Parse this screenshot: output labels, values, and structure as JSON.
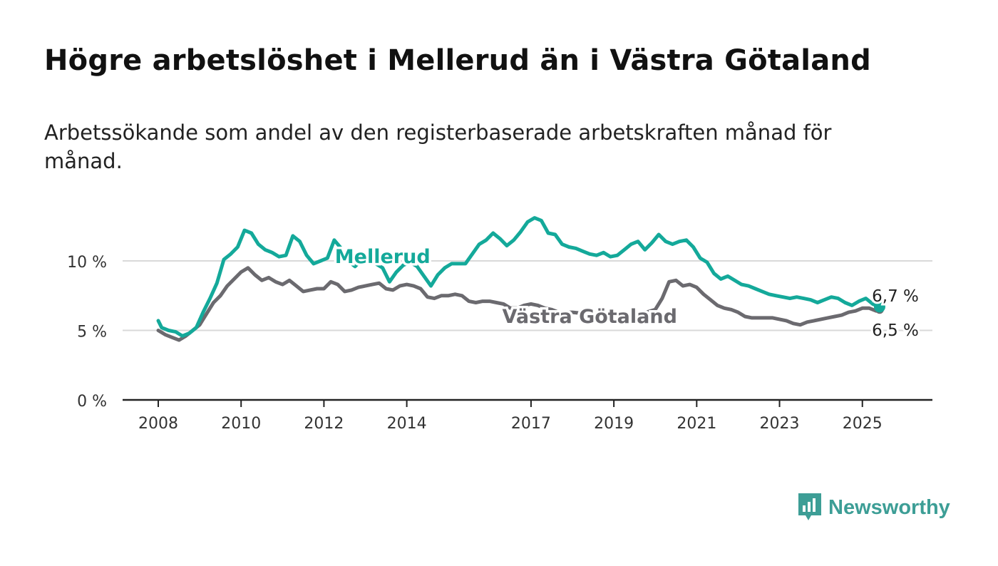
{
  "title": "Högre arbetslöshet i Mellerud än i Västra Götaland",
  "subtitle": "Arbetssökande som andel av den registerbaserade arbetskraften månad för månad.",
  "brand": {
    "name": "Newsworthy",
    "color": "#3d9e96",
    "icon": "bar-chart-speech-icon"
  },
  "chart_data": {
    "type": "line",
    "xlabel": "",
    "ylabel": "",
    "ylim": [
      0,
      14
    ],
    "xlim": [
      "2008-01",
      "2025-12"
    ],
    "yticks": [
      {
        "value": 0,
        "label": "0 %"
      },
      {
        "value": 5,
        "label": "5 %"
      },
      {
        "value": 10,
        "label": "10 %"
      }
    ],
    "xticks": [
      "2008",
      "2010",
      "2012",
      "2014",
      "2017",
      "2019",
      "2021",
      "2023",
      "2025"
    ],
    "grid": "horizontal",
    "series": [
      {
        "name": "Mellerud",
        "color": "#14a99a",
        "end_label": "6,7 %",
        "points": [
          [
            "2008-01",
            5.7
          ],
          [
            "2008-02",
            5.2
          ],
          [
            "2008-04",
            5.0
          ],
          [
            "2008-06",
            4.9
          ],
          [
            "2008-08",
            4.6
          ],
          [
            "2008-10",
            4.8
          ],
          [
            "2008-12",
            5.2
          ],
          [
            "2009-02",
            6.3
          ],
          [
            "2009-04",
            7.3
          ],
          [
            "2009-06",
            8.4
          ],
          [
            "2009-08",
            10.1
          ],
          [
            "2009-10",
            10.5
          ],
          [
            "2009-12",
            11.0
          ],
          [
            "2010-02",
            12.2
          ],
          [
            "2010-04",
            12.0
          ],
          [
            "2010-06",
            11.2
          ],
          [
            "2010-08",
            10.8
          ],
          [
            "2010-10",
            10.6
          ],
          [
            "2010-12",
            10.3
          ],
          [
            "2011-02",
            10.4
          ],
          [
            "2011-04",
            11.8
          ],
          [
            "2011-06",
            11.4
          ],
          [
            "2011-08",
            10.4
          ],
          [
            "2011-10",
            9.8
          ],
          [
            "2011-12",
            10.0
          ],
          [
            "2012-02",
            10.2
          ],
          [
            "2012-04",
            11.5
          ],
          [
            "2012-06",
            10.9
          ],
          [
            "2012-08",
            10.0
          ],
          [
            "2012-10",
            9.6
          ],
          [
            "2012-12",
            10.1
          ],
          [
            "2013-02",
            9.9
          ],
          [
            "2013-04",
            9.8
          ],
          [
            "2013-06",
            9.5
          ],
          [
            "2013-08",
            8.5
          ],
          [
            "2013-10",
            9.2
          ],
          [
            "2013-12",
            9.7
          ],
          [
            "2014-02",
            9.9
          ],
          [
            "2014-04",
            9.6
          ],
          [
            "2014-06",
            8.9
          ],
          [
            "2014-08",
            8.2
          ],
          [
            "2014-10",
            9.0
          ],
          [
            "2014-12",
            9.5
          ],
          [
            "2015-02",
            9.8
          ],
          [
            "2015-06",
            9.8
          ],
          [
            "2015-10",
            11.2
          ],
          [
            "2015-12",
            11.5
          ],
          [
            "2016-02",
            12.0
          ],
          [
            "2016-04",
            11.6
          ],
          [
            "2016-06",
            11.1
          ],
          [
            "2016-08",
            11.5
          ],
          [
            "2016-10",
            12.1
          ],
          [
            "2016-12",
            12.8
          ],
          [
            "2017-02",
            13.1
          ],
          [
            "2017-04",
            12.9
          ],
          [
            "2017-06",
            12.0
          ],
          [
            "2017-08",
            11.9
          ],
          [
            "2017-10",
            11.2
          ],
          [
            "2017-12",
            11.0
          ],
          [
            "2018-02",
            10.9
          ],
          [
            "2018-04",
            10.7
          ],
          [
            "2018-06",
            10.5
          ],
          [
            "2018-08",
            10.4
          ],
          [
            "2018-10",
            10.6
          ],
          [
            "2018-12",
            10.3
          ],
          [
            "2019-02",
            10.4
          ],
          [
            "2019-04",
            10.8
          ],
          [
            "2019-06",
            11.2
          ],
          [
            "2019-08",
            11.4
          ],
          [
            "2019-10",
            10.8
          ],
          [
            "2019-12",
            11.3
          ],
          [
            "2020-02",
            11.9
          ],
          [
            "2020-04",
            11.4
          ],
          [
            "2020-06",
            11.2
          ],
          [
            "2020-08",
            11.4
          ],
          [
            "2020-10",
            11.5
          ],
          [
            "2020-12",
            11.0
          ],
          [
            "2021-02",
            10.2
          ],
          [
            "2021-04",
            9.9
          ],
          [
            "2021-06",
            9.1
          ],
          [
            "2021-08",
            8.7
          ],
          [
            "2021-10",
            8.9
          ],
          [
            "2021-12",
            8.6
          ],
          [
            "2022-02",
            8.3
          ],
          [
            "2022-04",
            8.2
          ],
          [
            "2022-06",
            8.0
          ],
          [
            "2022-08",
            7.8
          ],
          [
            "2022-10",
            7.6
          ],
          [
            "2022-12",
            7.5
          ],
          [
            "2023-02",
            7.4
          ],
          [
            "2023-04",
            7.3
          ],
          [
            "2023-06",
            7.4
          ],
          [
            "2023-08",
            7.3
          ],
          [
            "2023-10",
            7.2
          ],
          [
            "2023-12",
            7.0
          ],
          [
            "2024-02",
            7.2
          ],
          [
            "2024-04",
            7.4
          ],
          [
            "2024-06",
            7.3
          ],
          [
            "2024-08",
            7.0
          ],
          [
            "2024-10",
            6.8
          ],
          [
            "2024-12",
            7.1
          ],
          [
            "2025-02",
            7.3
          ],
          [
            "2025-04",
            6.9
          ],
          [
            "2025-06",
            6.7
          ]
        ]
      },
      {
        "name": "Västra Götaland",
        "color": "#6b6a6f",
        "end_label": "6,5 %",
        "points": [
          [
            "2008-01",
            5.0
          ],
          [
            "2008-03",
            4.7
          ],
          [
            "2008-05",
            4.5
          ],
          [
            "2008-07",
            4.3
          ],
          [
            "2008-09",
            4.6
          ],
          [
            "2008-11",
            5.0
          ],
          [
            "2009-01",
            5.4
          ],
          [
            "2009-03",
            6.2
          ],
          [
            "2009-05",
            7.0
          ],
          [
            "2009-07",
            7.5
          ],
          [
            "2009-09",
            8.2
          ],
          [
            "2009-11",
            8.7
          ],
          [
            "2010-01",
            9.2
          ],
          [
            "2010-03",
            9.5
          ],
          [
            "2010-05",
            9.0
          ],
          [
            "2010-07",
            8.6
          ],
          [
            "2010-09",
            8.8
          ],
          [
            "2010-11",
            8.5
          ],
          [
            "2011-01",
            8.3
          ],
          [
            "2011-03",
            8.6
          ],
          [
            "2011-05",
            8.2
          ],
          [
            "2011-07",
            7.8
          ],
          [
            "2011-09",
            7.9
          ],
          [
            "2011-11",
            8.0
          ],
          [
            "2012-01",
            8.0
          ],
          [
            "2012-03",
            8.5
          ],
          [
            "2012-05",
            8.3
          ],
          [
            "2012-07",
            7.8
          ],
          [
            "2012-09",
            7.9
          ],
          [
            "2012-11",
            8.1
          ],
          [
            "2013-01",
            8.2
          ],
          [
            "2013-03",
            8.3
          ],
          [
            "2013-05",
            8.4
          ],
          [
            "2013-07",
            8.0
          ],
          [
            "2013-09",
            7.9
          ],
          [
            "2013-11",
            8.2
          ],
          [
            "2014-01",
            8.3
          ],
          [
            "2014-03",
            8.2
          ],
          [
            "2014-05",
            8.0
          ],
          [
            "2014-07",
            7.4
          ],
          [
            "2014-09",
            7.3
          ],
          [
            "2014-11",
            7.5
          ],
          [
            "2015-01",
            7.5
          ],
          [
            "2015-03",
            7.6
          ],
          [
            "2015-05",
            7.5
          ],
          [
            "2015-07",
            7.1
          ],
          [
            "2015-09",
            7.0
          ],
          [
            "2015-11",
            7.1
          ],
          [
            "2016-01",
            7.1
          ],
          [
            "2016-03",
            7.0
          ],
          [
            "2016-05",
            6.9
          ],
          [
            "2016-07",
            6.6
          ],
          [
            "2016-09",
            6.6
          ],
          [
            "2016-11",
            6.8
          ],
          [
            "2017-01",
            6.9
          ],
          [
            "2017-03",
            6.8
          ],
          [
            "2017-05",
            6.6
          ],
          [
            "2017-07",
            6.5
          ],
          [
            "2017-09",
            6.3
          ],
          [
            "2017-11",
            6.3
          ],
          [
            "2018-01",
            6.3
          ],
          [
            "2018-05",
            6.2
          ],
          [
            "2018-09",
            6.2
          ],
          [
            "2019-01",
            6.1
          ],
          [
            "2019-05",
            6.1
          ],
          [
            "2019-09",
            6.2
          ],
          [
            "2020-01",
            6.5
          ],
          [
            "2020-03",
            7.3
          ],
          [
            "2020-05",
            8.5
          ],
          [
            "2020-07",
            8.6
          ],
          [
            "2020-09",
            8.2
          ],
          [
            "2020-11",
            8.3
          ],
          [
            "2021-01",
            8.1
          ],
          [
            "2021-03",
            7.6
          ],
          [
            "2021-05",
            7.2
          ],
          [
            "2021-07",
            6.8
          ],
          [
            "2021-09",
            6.6
          ],
          [
            "2021-11",
            6.5
          ],
          [
            "2022-01",
            6.3
          ],
          [
            "2022-03",
            6.0
          ],
          [
            "2022-05",
            5.9
          ],
          [
            "2022-07",
            5.9
          ],
          [
            "2022-09",
            5.9
          ],
          [
            "2022-11",
            5.9
          ],
          [
            "2023-01",
            5.8
          ],
          [
            "2023-03",
            5.7
          ],
          [
            "2023-05",
            5.5
          ],
          [
            "2023-07",
            5.4
          ],
          [
            "2023-09",
            5.6
          ],
          [
            "2023-11",
            5.7
          ],
          [
            "2024-01",
            5.8
          ],
          [
            "2024-03",
            5.9
          ],
          [
            "2024-05",
            6.0
          ],
          [
            "2024-07",
            6.1
          ],
          [
            "2024-09",
            6.3
          ],
          [
            "2024-11",
            6.4
          ],
          [
            "2025-01",
            6.6
          ],
          [
            "2025-03",
            6.6
          ],
          [
            "2025-05",
            6.4
          ],
          [
            "2025-06",
            6.5
          ]
        ]
      }
    ]
  }
}
